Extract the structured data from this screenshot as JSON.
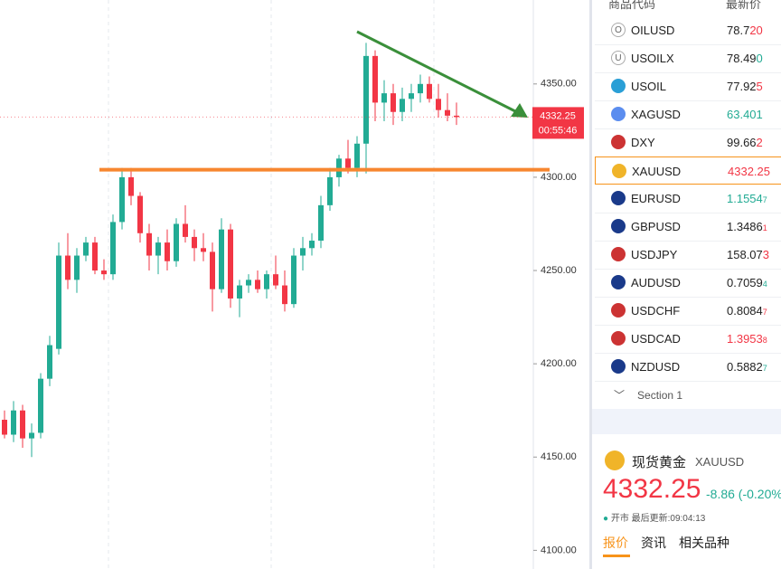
{
  "chart": {
    "ylim": [
      4090,
      4395
    ],
    "yticks": [
      {
        "value": 4350,
        "label": "4350.00"
      },
      {
        "value": 4300,
        "label": "4300.00"
      },
      {
        "value": 4250,
        "label": "4250.00"
      },
      {
        "value": 4200,
        "label": "4200.00"
      },
      {
        "value": 4150,
        "label": "4150.00"
      },
      {
        "value": 4100,
        "label": "4100.00"
      }
    ],
    "last_price": "4332.25",
    "countdown": "00:55:46",
    "support_level": 4304,
    "candles": {
      "open": [
        4170,
        4162,
        4175,
        4160,
        4163,
        4192,
        4208,
        4258,
        4245,
        4258,
        4265,
        4250,
        4248,
        4276,
        4300,
        4290,
        4270,
        4258,
        4265,
        4255,
        4275,
        4268,
        4262,
        4260,
        4240,
        4272,
        4235,
        4242,
        4245,
        4240,
        4248,
        4242,
        4232,
        4258,
        4262,
        4266,
        4285,
        4300,
        4310,
        4305,
        4318,
        4365,
        4340,
        4345,
        4335,
        4342,
        4345,
        4350,
        4342,
        4336,
        4333
      ],
      "high": [
        4175,
        4180,
        4178,
        4168,
        4195,
        4215,
        4265,
        4270,
        4262,
        4268,
        4268,
        4256,
        4280,
        4305,
        4305,
        4292,
        4275,
        4268,
        4272,
        4278,
        4285,
        4272,
        4270,
        4265,
        4278,
        4275,
        4245,
        4248,
        4250,
        4250,
        4258,
        4250,
        4262,
        4268,
        4270,
        4290,
        4305,
        4312,
        4320,
        4322,
        4372,
        4368,
        4352,
        4350,
        4348,
        4350,
        4355,
        4354,
        4350,
        4345,
        4340
      ],
      "low": [
        4160,
        4158,
        4155,
        4150,
        4160,
        4188,
        4205,
        4240,
        4238,
        4255,
        4248,
        4245,
        4245,
        4272,
        4285,
        4265,
        4250,
        4248,
        4250,
        4252,
        4265,
        4255,
        4255,
        4228,
        4238,
        4230,
        4225,
        4238,
        4238,
        4235,
        4240,
        4228,
        4230,
        4250,
        4258,
        4262,
        4282,
        4295,
        4302,
        4300,
        4302,
        4330,
        4330,
        4328,
        4330,
        4335,
        4340,
        4340,
        4332,
        4330,
        4328
      ],
      "close": [
        4162,
        4175,
        4160,
        4163,
        4192,
        4210,
        4258,
        4245,
        4258,
        4265,
        4250,
        4248,
        4276,
        4300,
        4290,
        4270,
        4258,
        4265,
        4255,
        4275,
        4268,
        4262,
        4260,
        4240,
        4272,
        4235,
        4242,
        4245,
        4240,
        4248,
        4242,
        4232,
        4258,
        4262,
        4266,
        4285,
        4300,
        4310,
        4305,
        4318,
        4365,
        4340,
        4345,
        4335,
        4342,
        4345,
        4350,
        4342,
        4336,
        4333,
        4332.25
      ]
    }
  },
  "watchlist": {
    "header": {
      "symbol": "商品代码",
      "price": "最新价"
    },
    "rows": [
      {
        "symbol": "OILUSD",
        "main": "78.7",
        "tail": "20",
        "main_color": "#222",
        "tail_color": "#f23645",
        "icon": "O"
      },
      {
        "symbol": "USOILX",
        "main": "78.49",
        "tail": "0",
        "main_color": "#222",
        "tail_color": "#22ab94",
        "icon": "U"
      },
      {
        "symbol": "USOIL",
        "main": "77.92",
        "tail": "5",
        "main_color": "#222",
        "tail_color": "#f23645",
        "icon": "#2a9fd6"
      },
      {
        "symbol": "XAGUSD",
        "main": "63.401",
        "tail": "",
        "main_color": "#22ab94",
        "tail_color": "#22ab94",
        "icon": "#5b8def"
      },
      {
        "symbol": "DXY",
        "main": "99.66",
        "tail": "2",
        "main_color": "#222",
        "tail_color": "#f23645",
        "icon": "#c33"
      },
      {
        "symbol": "XAUUSD",
        "main": "4332.25",
        "tail": "",
        "main_color": "#f23645",
        "tail_color": "#f23645",
        "icon": "#f0b429"
      },
      {
        "symbol": "EURUSD",
        "main": "1.1554",
        "tail": "7",
        "main_color": "#22ab94",
        "tail_color": "#22ab94",
        "icon": "#1a3a8a"
      },
      {
        "symbol": "GBPUSD",
        "main": "1.3486",
        "tail": "1",
        "main_color": "#222",
        "tail_color": "#f23645",
        "icon": "#1a3a8a"
      },
      {
        "symbol": "USDJPY",
        "main": "158.07",
        "tail": "3",
        "main_color": "#222",
        "tail_color": "#f23645",
        "icon": "#c33"
      },
      {
        "symbol": "AUDUSD",
        "main": "0.7059",
        "tail": "4",
        "main_color": "#222",
        "tail_color": "#22ab94",
        "icon": "#1a3a8a"
      },
      {
        "symbol": "USDCHF",
        "main": "0.8084",
        "tail": "7",
        "main_color": "#222",
        "tail_color": "#f23645",
        "icon": "#c33"
      },
      {
        "symbol": "USDCAD",
        "main": "1.3953",
        "tail": "8",
        "main_color": "#f23645",
        "tail_color": "#f23645",
        "icon": "#c33"
      },
      {
        "symbol": "NZDUSD",
        "main": "0.5882",
        "tail": "7",
        "main_color": "#222",
        "tail_color": "#22ab94",
        "icon": "#1a3a8a"
      }
    ],
    "section": "Section 1"
  },
  "detail": {
    "name": "现货黄金",
    "symbol": "XAUUSD",
    "price": "4332.25",
    "change": "-8.86 (-0.20%)",
    "status": "开市",
    "updated": "最后更新:09:04:13",
    "tabs": [
      "报价",
      "资讯",
      "相关品种"
    ]
  }
}
